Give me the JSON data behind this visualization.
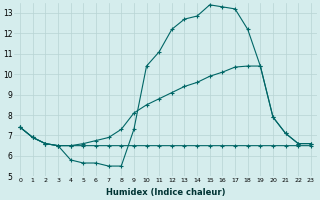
{
  "xlabel": "Humidex (Indice chaleur)",
  "bg_color": "#d5eded",
  "grid_color": "#b8d4d4",
  "line_color": "#006666",
  "xlim": [
    -0.5,
    23.5
  ],
  "ylim": [
    5,
    13.5
  ],
  "yticks": [
    5,
    6,
    7,
    8,
    9,
    10,
    11,
    12,
    13
  ],
  "xticks": [
    0,
    1,
    2,
    3,
    4,
    5,
    6,
    7,
    8,
    9,
    10,
    11,
    12,
    13,
    14,
    15,
    16,
    17,
    18,
    19,
    20,
    21,
    22,
    23
  ],
  "line1_x": [
    0,
    1,
    2,
    3,
    4,
    5,
    6,
    7,
    8,
    9,
    10,
    11,
    12,
    13,
    14,
    15,
    16,
    17,
    18,
    19,
    20,
    21,
    22,
    23
  ],
  "line1_y": [
    7.4,
    6.9,
    6.6,
    6.5,
    5.8,
    5.65,
    5.65,
    5.5,
    5.5,
    7.3,
    10.4,
    11.1,
    12.2,
    12.7,
    12.85,
    13.4,
    13.3,
    13.2,
    12.2,
    10.4,
    7.9,
    7.1,
    6.6,
    6.6
  ],
  "line2_x": [
    0,
    1,
    2,
    3,
    4,
    5,
    6,
    7,
    8,
    9,
    10,
    11,
    12,
    13,
    14,
    15,
    16,
    17,
    18,
    19,
    20,
    21,
    22,
    23
  ],
  "line2_y": [
    7.4,
    6.9,
    6.6,
    6.5,
    6.5,
    6.5,
    6.5,
    6.5,
    6.5,
    6.5,
    6.5,
    6.5,
    6.5,
    6.5,
    6.5,
    6.5,
    6.5,
    6.5,
    6.5,
    6.5,
    6.5,
    6.5,
    6.5,
    6.5
  ],
  "line3_x": [
    0,
    1,
    2,
    3,
    4,
    5,
    6,
    7,
    8,
    9,
    10,
    11,
    12,
    13,
    14,
    15,
    16,
    17,
    18,
    19,
    20,
    21,
    22,
    23
  ],
  "line3_y": [
    7.4,
    6.9,
    6.6,
    6.5,
    6.5,
    6.6,
    6.75,
    6.9,
    7.3,
    8.1,
    8.5,
    8.8,
    9.1,
    9.4,
    9.6,
    9.9,
    10.1,
    10.35,
    10.4,
    10.4,
    7.9,
    7.1,
    6.6,
    6.6
  ]
}
